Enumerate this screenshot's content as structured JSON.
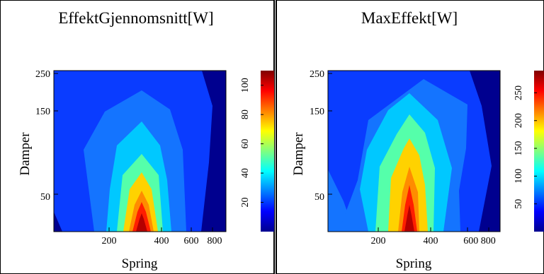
{
  "chart_data": [
    {
      "type": "contour",
      "title": "EffektGjennomsnitt[W]",
      "xlabel": "Spring",
      "ylabel": "Damper",
      "xticks": [
        "200",
        "400",
        "600",
        "800"
      ],
      "yticks": [
        "50",
        "150",
        "250"
      ],
      "colorbar_ticks": [
        "20",
        "40",
        "60",
        "80",
        "100"
      ],
      "colorbar_max": 110,
      "levels": [
        10,
        20,
        30,
        40,
        50,
        60,
        70,
        80,
        90,
        100,
        110
      ],
      "colormap": "jet"
    },
    {
      "type": "contour",
      "title": "MaxEffekt[W]",
      "xlabel": "Spring",
      "ylabel": "Damper",
      "xticks": [
        "200",
        "400",
        "600 800"
      ],
      "yticks": [
        "50",
        "150",
        "250"
      ],
      "colorbar_ticks": [
        "50",
        "100",
        "150",
        "200",
        "250"
      ],
      "colorbar_max": 290,
      "levels": [
        25,
        50,
        75,
        100,
        125,
        150,
        175,
        200,
        225,
        250,
        275
      ],
      "colormap": "jet"
    }
  ]
}
